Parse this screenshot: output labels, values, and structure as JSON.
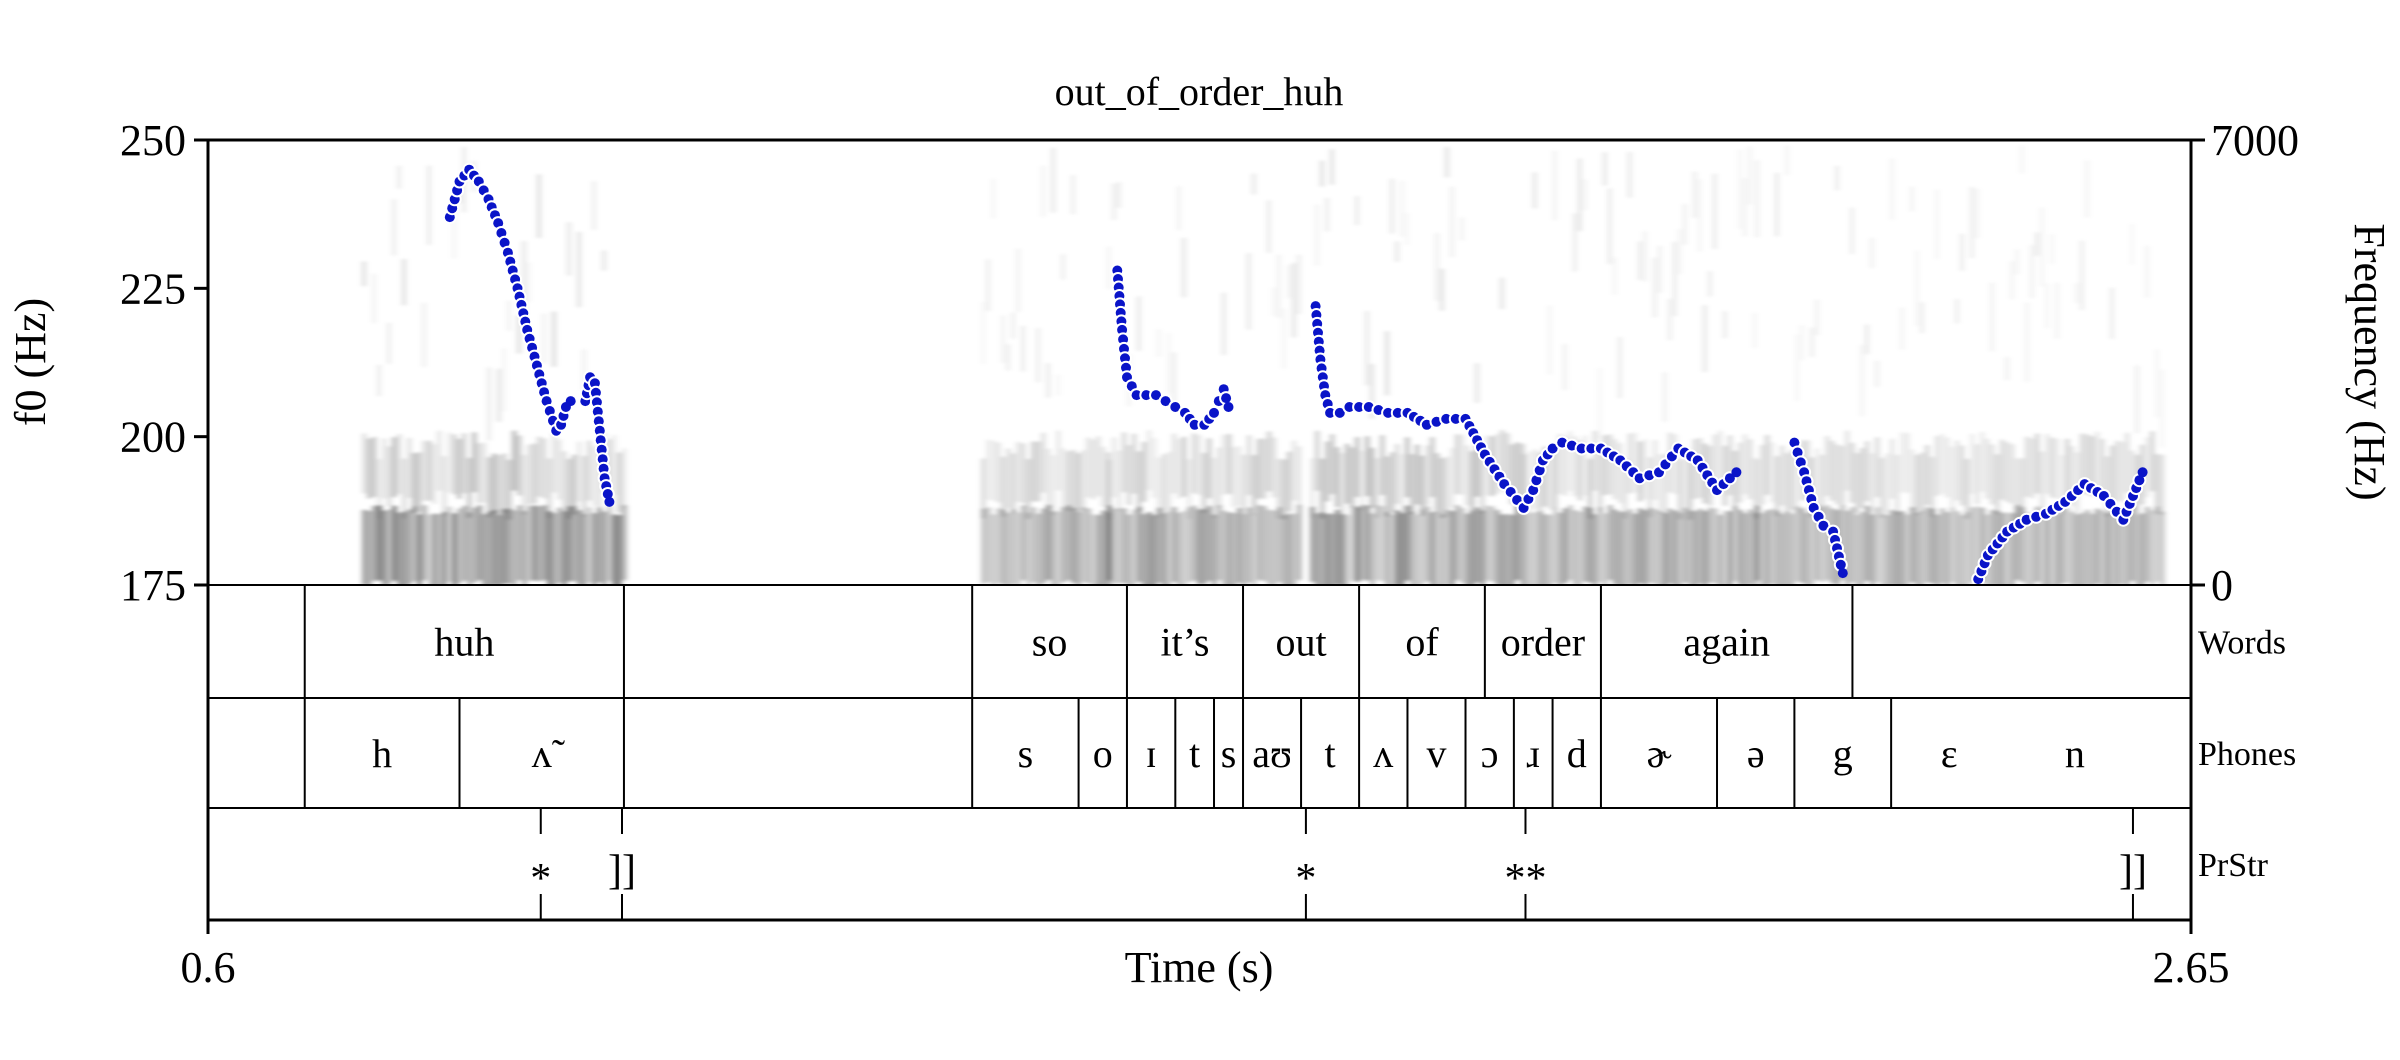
{
  "chart_data": {
    "type": "scatter",
    "title": "out_of_order_huh",
    "xlabel": "Time (s)",
    "ylabel_left": "f0 (Hz)",
    "ylabel_right": "Frequency (Hz)",
    "xlim": [
      0.6,
      2.65
    ],
    "ylim_left": [
      175,
      250
    ],
    "ylim_right": [
      0,
      7000
    ],
    "x_tick_labels": [
      "0.6",
      "2.65"
    ],
    "y_left_ticks": [
      250,
      225,
      200,
      175
    ],
    "y_left_tick_labels": [
      "250",
      "225",
      "200",
      "175"
    ],
    "y_right_tick_labels": [
      "7000",
      "0"
    ],
    "grid": false,
    "colors": {
      "f0_points": "#0a14c8",
      "spectrogram": "#000000"
    },
    "spectrogram_regions": [
      {
        "start": 0.76,
        "end": 1.03,
        "energy": 0.9
      },
      {
        "start": 1.4,
        "end": 1.53,
        "energy": 0.55
      },
      {
        "start": 1.53,
        "end": 1.73,
        "energy": 0.6
      },
      {
        "start": 1.74,
        "end": 1.96,
        "energy": 0.8
      },
      {
        "start": 1.96,
        "end": 2.2,
        "energy": 0.55
      },
      {
        "start": 2.2,
        "end": 2.62,
        "energy": 0.45
      }
    ],
    "f0_segments": [
      {
        "x": [
          0.85,
          0.86,
          0.87,
          0.88,
          0.89,
          0.9,
          0.91,
          0.92,
          0.93,
          0.94,
          0.95,
          0.96,
          0.965,
          0.97,
          0.975
        ],
        "y": [
          237,
          243,
          245,
          243,
          240,
          236,
          231,
          225,
          218,
          212,
          206,
          201,
          202,
          205,
          206
        ]
      },
      {
        "x": [
          0.99,
          0.995,
          1.0,
          1.005,
          1.01,
          1.015
        ],
        "y": [
          206,
          210,
          209,
          201,
          193,
          189
        ]
      },
      {
        "x": [
          1.54,
          1.545,
          1.55,
          1.56,
          1.57,
          1.58,
          1.59,
          1.6,
          1.61,
          1.62,
          1.63,
          1.64,
          1.645,
          1.65,
          1.655
        ],
        "y": [
          228,
          218,
          210,
          207,
          207,
          207,
          206,
          205,
          204,
          202,
          202,
          204,
          206,
          208,
          205
        ]
      },
      {
        "x": [
          1.745,
          1.75,
          1.755,
          1.76,
          1.77,
          1.78,
          1.79,
          1.8,
          1.82,
          1.84,
          1.86,
          1.88,
          1.9,
          1.92,
          1.94,
          1.96,
          1.97,
          1.98,
          1.99,
          2.0,
          2.02,
          2.04,
          2.06,
          2.08,
          2.1,
          2.12,
          2.14,
          2.16,
          2.18
        ],
        "y": [
          222,
          213,
          207,
          204,
          204,
          205,
          205,
          205,
          204,
          204,
          202,
          203,
          203,
          197,
          192,
          188,
          191,
          196,
          198,
          199,
          198,
          198,
          196,
          193,
          194,
          198,
          196,
          191,
          194
        ]
      },
      {
        "x": [
          2.24,
          2.25,
          2.26,
          2.27,
          2.28,
          2.29
        ],
        "y": [
          199,
          194,
          188,
          185,
          184,
          177
        ]
      },
      {
        "x": [
          2.43,
          2.44,
          2.45,
          2.46,
          2.48,
          2.5,
          2.52,
          2.54,
          2.56,
          2.58,
          2.6
        ],
        "y": [
          176,
          180,
          182,
          184,
          186,
          187,
          189,
          192,
          190,
          186,
          194
        ]
      }
    ],
    "tiers": [
      {
        "name": "Words",
        "boundaries": [
          0.7,
          1.03,
          1.39,
          1.55,
          1.67,
          1.79,
          1.92,
          2.04,
          2.3,
          2.68
        ],
        "intervals": [
          {
            "start": 0.7,
            "end": 1.03,
            "label": "huh"
          },
          {
            "start": 1.39,
            "end": 1.55,
            "label": "so"
          },
          {
            "start": 1.55,
            "end": 1.67,
            "label": "it’s"
          },
          {
            "start": 1.67,
            "end": 1.79,
            "label": "out"
          },
          {
            "start": 1.79,
            "end": 1.92,
            "label": "of"
          },
          {
            "start": 1.92,
            "end": 2.04,
            "label": "order"
          },
          {
            "start": 2.04,
            "end": 2.3,
            "label": "again"
          }
        ]
      },
      {
        "name": "Phones",
        "boundaries": [
          0.7,
          0.86,
          1.03,
          1.39,
          1.5,
          1.55,
          1.6,
          1.64,
          1.67,
          1.73,
          1.79,
          1.84,
          1.9,
          1.95,
          1.99,
          2.04,
          2.16,
          2.24,
          2.34,
          2.68
        ],
        "intervals": [
          {
            "start": 0.7,
            "end": 0.86,
            "label": "h"
          },
          {
            "start": 0.86,
            "end": 1.03,
            "label": "ʌ̃"
          },
          {
            "start": 1.39,
            "end": 1.5,
            "label": "s"
          },
          {
            "start": 1.5,
            "end": 1.55,
            "label": "o"
          },
          {
            "start": 1.55,
            "end": 1.6,
            "label": "ɪ"
          },
          {
            "start": 1.6,
            "end": 1.64,
            "label": "t"
          },
          {
            "start": 1.64,
            "end": 1.67,
            "label": "s"
          },
          {
            "start": 1.67,
            "end": 1.73,
            "label": "aʊ"
          },
          {
            "start": 1.73,
            "end": 1.79,
            "label": "t"
          },
          {
            "start": 1.79,
            "end": 1.84,
            "label": "ʌ"
          },
          {
            "start": 1.84,
            "end": 1.9,
            "label": "v"
          },
          {
            "start": 1.9,
            "end": 1.95,
            "label": "ɔ"
          },
          {
            "start": 1.95,
            "end": 1.99,
            "label": "ɹ"
          },
          {
            "start": 1.99,
            "end": 2.04,
            "label": "d"
          },
          {
            "start": 2.04,
            "end": 2.16,
            "label": "ɚ"
          },
          {
            "start": 2.16,
            "end": 2.24,
            "label": "ə"
          },
          {
            "start": 2.24,
            "end": 2.34,
            "label": "g"
          },
          {
            "start": 2.34,
            "end": 2.46,
            "label": "ɛ"
          },
          {
            "start": 2.46,
            "end": 2.6,
            "label": "n"
          }
        ]
      },
      {
        "name": "PrStr",
        "points": [
          {
            "time": 0.944,
            "label": "*"
          },
          {
            "time": 1.028,
            "label": "]]"
          },
          {
            "time": 1.735,
            "label": "*"
          },
          {
            "time": 1.962,
            "label": "**"
          },
          {
            "time": 2.59,
            "label": "]]"
          }
        ]
      }
    ]
  }
}
